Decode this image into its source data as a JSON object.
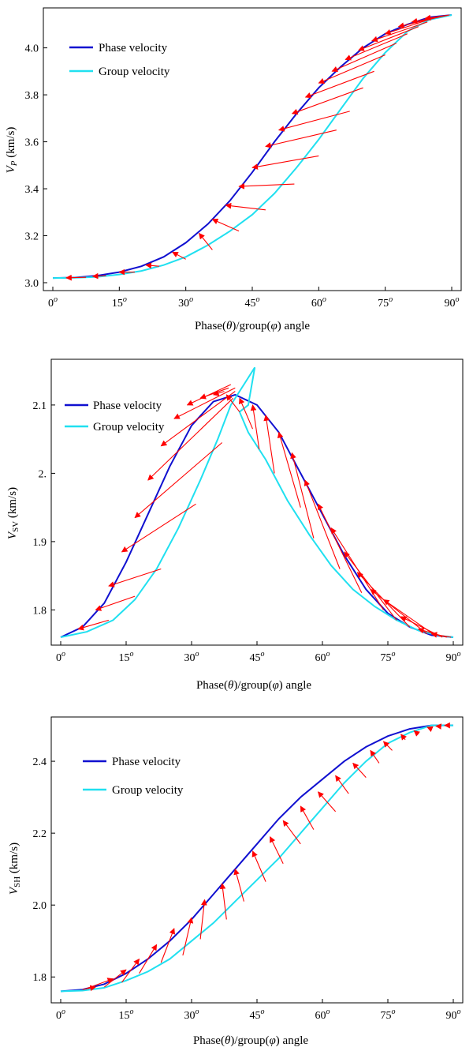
{
  "chart_data": [
    {
      "type": "line",
      "id": "vp",
      "ylabel_main": "V",
      "ylabel_sub": "P",
      "ylabel_unit": " (km/s)",
      "xlabel": "Phase(θ)/group(φ) angle",
      "xlim": [
        0,
        90
      ],
      "ylim": [
        3.0,
        4.15
      ],
      "xticks": [
        0,
        15,
        30,
        45,
        60,
        75,
        90
      ],
      "yticks": [
        3.0,
        3.2,
        3.4,
        3.6,
        3.8,
        4.0
      ],
      "ytick_labels": [
        "3.0",
        "3.2",
        "3.4",
        "3.6",
        "3.8",
        "4.0"
      ],
      "xtick_labels": [
        "0",
        "15",
        "30",
        "45",
        "60",
        "75",
        "90"
      ],
      "xtick_sup": "o",
      "legend": "top-left",
      "series": [
        {
          "name": "Phase velocity",
          "color": "#1010d0",
          "x": [
            0,
            5,
            10,
            15,
            20,
            25,
            30,
            35,
            40,
            45,
            50,
            55,
            60,
            65,
            70,
            75,
            80,
            85,
            90
          ],
          "y": [
            3.02,
            3.022,
            3.03,
            3.045,
            3.07,
            3.11,
            3.17,
            3.25,
            3.35,
            3.47,
            3.6,
            3.72,
            3.83,
            3.92,
            4.0,
            4.06,
            4.1,
            4.13,
            4.14
          ]
        },
        {
          "name": "Group velocity",
          "color": "#20e0f0",
          "x": [
            0,
            5,
            10,
            15,
            20,
            25,
            30,
            35,
            40,
            45,
            50,
            55,
            60,
            65,
            70,
            75,
            80,
            85,
            90
          ],
          "y": [
            3.02,
            3.021,
            3.025,
            3.035,
            3.05,
            3.075,
            3.11,
            3.16,
            3.22,
            3.29,
            3.38,
            3.49,
            3.61,
            3.74,
            3.87,
            3.98,
            4.07,
            4.12,
            4.14
          ]
        }
      ],
      "arrows": [
        {
          "phase": [
            3,
            3.021
          ],
          "group": [
            7.5,
            3.023
          ]
        },
        {
          "phase": [
            9,
            3.027
          ],
          "group": [
            12,
            3.03
          ]
        },
        {
          "phase": [
            15,
            3.045
          ],
          "group": [
            18.5,
            3.045
          ]
        },
        {
          "phase": [
            21,
            3.075
          ],
          "group": [
            24,
            3.07
          ]
        },
        {
          "phase": [
            27,
            3.13
          ],
          "group": [
            30,
            3.1
          ]
        },
        {
          "phase": [
            33,
            3.21
          ],
          "group": [
            36,
            3.14
          ]
        },
        {
          "phase": [
            36,
            3.27
          ],
          "group": [
            42,
            3.22
          ]
        },
        {
          "phase": [
            39,
            3.33
          ],
          "group": [
            48,
            3.31
          ]
        },
        {
          "phase": [
            42,
            3.41
          ],
          "group": [
            54.5,
            3.42
          ]
        },
        {
          "phase": [
            45,
            3.49
          ],
          "group": [
            60,
            3.54
          ]
        },
        {
          "phase": [
            48,
            3.58
          ],
          "group": [
            64,
            3.65
          ]
        },
        {
          "phase": [
            51,
            3.65
          ],
          "group": [
            67,
            3.73
          ]
        },
        {
          "phase": [
            54,
            3.72
          ],
          "group": [
            70,
            3.83
          ]
        },
        {
          "phase": [
            57,
            3.79
          ],
          "group": [
            72.5,
            3.9
          ]
        },
        {
          "phase": [
            60,
            3.85
          ],
          "group": [
            75,
            3.97
          ]
        },
        {
          "phase": [
            63,
            3.9
          ],
          "group": [
            77.5,
            4.02
          ]
        },
        {
          "phase": [
            66,
            3.95
          ],
          "group": [
            80,
            4.06
          ]
        },
        {
          "phase": [
            69,
            3.99
          ],
          "group": [
            82.5,
            4.09
          ]
        },
        {
          "phase": [
            72,
            4.03
          ],
          "group": [
            84.5,
            4.11
          ]
        },
        {
          "phase": [
            75,
            4.06
          ],
          "group": [
            86.5,
            4.13
          ]
        },
        {
          "phase": [
            78,
            4.09
          ],
          "group": [
            88,
            4.135
          ]
        },
        {
          "phase": [
            81,
            4.11
          ],
          "group": [
            89,
            4.138
          ]
        },
        {
          "phase": [
            84,
            4.125
          ],
          "group": [
            89.5,
            4.14
          ]
        }
      ]
    },
    {
      "type": "line",
      "id": "vsv",
      "ylabel_main": "V",
      "ylabel_sub": "SV",
      "ylabel_unit": " (km/s)",
      "xlabel": "Phase(θ)/group(φ) angle",
      "xlim": [
        0,
        90
      ],
      "ylim": [
        1.76,
        2.16
      ],
      "xticks": [
        0,
        15,
        30,
        45,
        60,
        75,
        90
      ],
      "yticks": [
        1.8,
        1.9,
        2.0,
        2.1
      ],
      "ytick_labels": [
        "1.8",
        "1.9",
        "2.",
        "2.1"
      ],
      "xtick_labels": [
        "0",
        "15",
        "30",
        "45",
        "60",
        "75",
        "90"
      ],
      "xtick_sup": "o",
      "legend": "top-left",
      "series": [
        {
          "name": "Phase velocity",
          "color": "#1010d0",
          "x": [
            0,
            5,
            10,
            15,
            20,
            25,
            30,
            35,
            40,
            45,
            50,
            55,
            60,
            65,
            70,
            75,
            80,
            85,
            90
          ],
          "y": [
            1.76,
            1.775,
            1.81,
            1.87,
            1.94,
            2.01,
            2.07,
            2.105,
            2.115,
            2.1,
            2.06,
            2.0,
            1.94,
            1.88,
            1.83,
            1.795,
            1.775,
            1.763,
            1.76
          ]
        },
        {
          "name": "Group velocity",
          "color": "#20e0f0",
          "x": [
            0,
            6,
            12,
            17,
            22,
            27,
            32,
            36,
            39,
            42,
            44.5,
            43,
            41,
            43,
            47,
            52,
            57,
            62,
            67,
            72,
            77,
            82,
            87,
            90
          ],
          "y": [
            1.76,
            1.768,
            1.785,
            1.815,
            1.86,
            1.92,
            1.99,
            2.05,
            2.1,
            2.13,
            2.155,
            2.1,
            2.09,
            2.06,
            2.02,
            1.96,
            1.91,
            1.865,
            1.83,
            1.805,
            1.785,
            1.77,
            1.762,
            1.76
          ]
        }
      ],
      "arrows": [
        {
          "phase": [
            4,
            1.772
          ],
          "group": [
            11,
            1.785
          ]
        },
        {
          "phase": [
            8,
            1.8
          ],
          "group": [
            17,
            1.82
          ]
        },
        {
          "phase": [
            11,
            1.835
          ],
          "group": [
            23,
            1.86
          ]
        },
        {
          "phase": [
            14,
            1.885
          ],
          "group": [
            31,
            1.955
          ]
        },
        {
          "phase": [
            17,
            1.935
          ],
          "group": [
            37,
            2.045
          ]
        },
        {
          "phase": [
            20,
            1.99
          ],
          "group": [
            39.5,
            2.11
          ]
        },
        {
          "phase": [
            23,
            2.04
          ],
          "group": [
            40,
            2.12
          ]
        },
        {
          "phase": [
            26,
            2.08
          ],
          "group": [
            40,
            2.125
          ]
        },
        {
          "phase": [
            29,
            2.1
          ],
          "group": [
            39,
            2.13
          ]
        },
        {
          "phase": [
            32,
            2.11
          ],
          "group": [
            38.5,
            2.125
          ]
        },
        {
          "phase": [
            35,
            2.115
          ],
          "group": [
            37.5,
            2.12
          ]
        },
        {
          "phase": [
            38,
            2.115
          ],
          "group": [
            41,
            2.09
          ]
        },
        {
          "phase": [
            41,
            2.11
          ],
          "group": [
            44,
            2.065
          ]
        },
        {
          "phase": [
            44,
            2.1
          ],
          "group": [
            45.5,
            2.035
          ]
        },
        {
          "phase": [
            47,
            2.085
          ],
          "group": [
            49,
            2.0
          ]
        },
        {
          "phase": [
            50,
            2.06
          ],
          "group": [
            55,
            1.95
          ]
        },
        {
          "phase": [
            53,
            2.03
          ],
          "group": [
            58,
            1.905
          ]
        },
        {
          "phase": [
            56,
            1.99
          ],
          "group": [
            64,
            1.86
          ]
        },
        {
          "phase": [
            59,
            1.955
          ],
          "group": [
            69,
            1.825
          ]
        },
        {
          "phase": [
            62,
            1.92
          ],
          "group": [
            74,
            1.8
          ]
        },
        {
          "phase": [
            65,
            1.885
          ],
          "group": [
            77,
            1.785
          ]
        },
        {
          "phase": [
            68,
            1.855
          ],
          "group": [
            80,
            1.775
          ]
        },
        {
          "phase": [
            71,
            1.83
          ],
          "group": [
            84,
            1.765
          ]
        },
        {
          "phase": [
            74,
            1.815
          ],
          "group": [
            86,
            1.762
          ]
        },
        {
          "phase": [
            78,
            1.79
          ],
          "group": [
            87.5,
            1.76
          ]
        },
        {
          "phase": [
            82,
            1.772
          ],
          "group": [
            88.5,
            1.76
          ]
        },
        {
          "phase": [
            85,
            1.765
          ],
          "group": [
            89.5,
            1.76
          ]
        }
      ]
    },
    {
      "type": "line",
      "id": "vsh",
      "ylabel_main": "V",
      "ylabel_sub": "SH",
      "ylabel_unit": " (km/s)",
      "xlabel": "Phase(θ)/group(φ) angle",
      "xlim": [
        0,
        90
      ],
      "ylim": [
        1.75,
        2.51
      ],
      "xticks": [
        0,
        15,
        30,
        45,
        60,
        75,
        90
      ],
      "yticks": [
        1.8,
        2.0,
        2.2,
        2.4
      ],
      "ytick_labels": [
        "1.8",
        "2.0",
        "2.2",
        "2.4"
      ],
      "xtick_labels": [
        "0",
        "15",
        "30",
        "45",
        "60",
        "75",
        "90"
      ],
      "xtick_sup": "o",
      "legend": "top-left",
      "series": [
        {
          "name": "Phase velocity",
          "color": "#1010d0",
          "x": [
            0,
            5,
            10,
            15,
            20,
            25,
            30,
            35,
            40,
            45,
            50,
            55,
            60,
            65,
            70,
            75,
            80,
            85,
            90
          ],
          "y": [
            1.76,
            1.765,
            1.78,
            1.81,
            1.85,
            1.9,
            1.96,
            2.03,
            2.1,
            2.17,
            2.24,
            2.3,
            2.35,
            2.4,
            2.44,
            2.47,
            2.49,
            2.5,
            2.5
          ]
        },
        {
          "name": "Group velocity",
          "color": "#20e0f0",
          "x": [
            0,
            5,
            10,
            15,
            20,
            25,
            30,
            35,
            40,
            45,
            50,
            55,
            60,
            65,
            70,
            75,
            80,
            85,
            90
          ],
          "y": [
            1.76,
            1.762,
            1.77,
            1.79,
            1.815,
            1.85,
            1.9,
            1.95,
            2.01,
            2.07,
            2.13,
            2.2,
            2.27,
            2.34,
            2.4,
            2.45,
            2.48,
            2.5,
            2.5
          ]
        }
      ],
      "arrows": [
        {
          "phase": [
            8,
            1.772
          ],
          "group": [
            5,
            1.765
          ]
        },
        {
          "phase": [
            12,
            1.795
          ],
          "group": [
            6,
            1.768
          ]
        },
        {
          "phase": [
            15,
            1.82
          ],
          "group": [
            10,
            1.772
          ]
        },
        {
          "phase": [
            18,
            1.85
          ],
          "group": [
            14,
            1.785
          ]
        },
        {
          "phase": [
            22,
            1.89
          ],
          "group": [
            18,
            1.81
          ]
        },
        {
          "phase": [
            26,
            1.935
          ],
          "group": [
            23,
            1.84
          ]
        },
        {
          "phase": [
            30,
            1.965
          ],
          "group": [
            28,
            1.86
          ]
        },
        {
          "phase": [
            33,
            2.015
          ],
          "group": [
            32,
            1.905
          ]
        },
        {
          "phase": [
            37,
            2.06
          ],
          "group": [
            38,
            1.96
          ]
        },
        {
          "phase": [
            40,
            2.1
          ],
          "group": [
            42,
            2.01
          ]
        },
        {
          "phase": [
            44,
            2.15
          ],
          "group": [
            47,
            2.065
          ]
        },
        {
          "phase": [
            48,
            2.19
          ],
          "group": [
            51,
            2.115
          ]
        },
        {
          "phase": [
            51,
            2.235
          ],
          "group": [
            55,
            2.17
          ]
        },
        {
          "phase": [
            55,
            2.275
          ],
          "group": [
            58,
            2.21
          ]
        },
        {
          "phase": [
            59,
            2.315
          ],
          "group": [
            63,
            2.26
          ]
        },
        {
          "phase": [
            63,
            2.36
          ],
          "group": [
            66,
            2.31
          ]
        },
        {
          "phase": [
            67,
            2.395
          ],
          "group": [
            70,
            2.355
          ]
        },
        {
          "phase": [
            71,
            2.43
          ],
          "group": [
            73,
            2.395
          ]
        },
        {
          "phase": [
            74,
            2.455
          ],
          "group": [
            76,
            2.43
          ]
        },
        {
          "phase": [
            78,
            2.475
          ],
          "group": [
            79,
            2.46
          ]
        },
        {
          "phase": [
            81,
            2.485
          ],
          "group": [
            82,
            2.475
          ]
        },
        {
          "phase": [
            84,
            2.495
          ],
          "group": [
            85,
            2.49
          ]
        },
        {
          "phase": [
            86,
            2.498
          ],
          "group": [
            87,
            2.497
          ]
        },
        {
          "phase": [
            88,
            2.5
          ],
          "group": [
            89,
            2.5
          ]
        }
      ]
    }
  ]
}
